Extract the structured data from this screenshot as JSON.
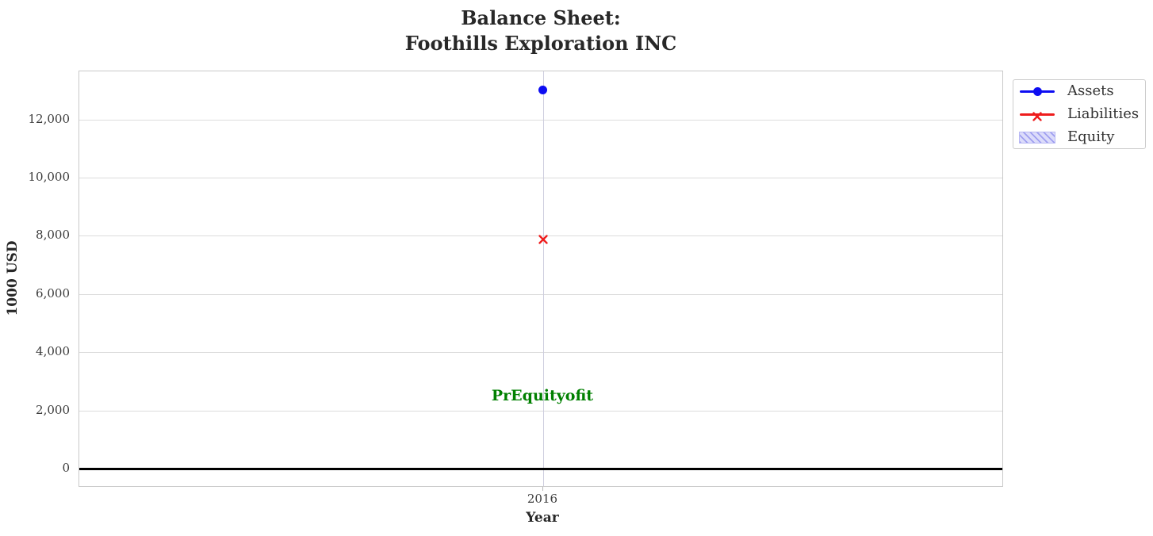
{
  "chart_data": {
    "type": "scatter",
    "title_lines": [
      "Balance Sheet:",
      "Foothills Exploration INC"
    ],
    "xlabel": "Year",
    "ylabel": "1000 USD",
    "x": [
      2016
    ],
    "xtick_labels": [
      "2016"
    ],
    "series": [
      {
        "name": "Assets",
        "marker": "circle",
        "color": "#0d0df2",
        "values": [
          13000
        ]
      },
      {
        "name": "Liabilities",
        "marker": "x",
        "color": "#ee1c1c",
        "values": [
          7960
        ]
      },
      {
        "name": "Equity",
        "marker": "hatch-patch",
        "color": "#b9b9f4",
        "fill_color": "#dcdcfa",
        "hatch_color": "#9f9ff0",
        "values": []
      }
    ],
    "annotation": {
      "text": "PrEquityofit",
      "x": 2016,
      "y": 2480,
      "color": "#008000"
    },
    "yticks": [
      0,
      2000,
      4000,
      6000,
      8000,
      10000,
      12000
    ],
    "ytick_labels": [
      "0",
      "2,000",
      "4,000",
      "6,000",
      "8,000",
      "10,000",
      "12,000"
    ],
    "ylim": [
      -650,
      13650
    ],
    "grid": true,
    "zero_line": true,
    "legend_position": "outside-upper-right"
  },
  "colors": {
    "grid_h": "#dcdcdc",
    "grid_v": "#cdcdde",
    "plot_border": "#c9c9c9",
    "zero_line": "#000000",
    "title_text": "#282828",
    "tick_text": "#3c3c3c",
    "legend_text": "#333333"
  }
}
